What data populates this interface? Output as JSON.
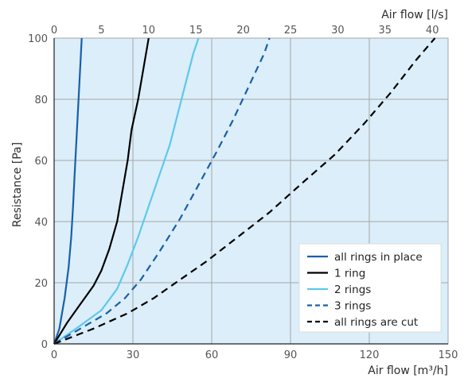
{
  "chart_data": {
    "type": "line",
    "x_bottom": {
      "label": "Air flow [m³/h]",
      "range": [
        0,
        150
      ],
      "ticks": [
        0,
        30,
        60,
        90,
        120,
        150
      ]
    },
    "x_top": {
      "label": "Air flow [l/s]",
      "range": [
        0,
        41.667
      ],
      "ticks": [
        0,
        5,
        10,
        15,
        20,
        25,
        30,
        35,
        40
      ]
    },
    "y": {
      "label": "Resistance [Pa]",
      "range": [
        0,
        100
      ],
      "ticks": [
        0,
        20,
        40,
        60,
        80,
        100
      ]
    },
    "grid": true,
    "legend_position": "bottom-right",
    "series": [
      {
        "name": "all rings in place",
        "color": "#1a5fa8",
        "dash": "solid",
        "points": [
          [
            0,
            0
          ],
          [
            2,
            5
          ],
          [
            4,
            15
          ],
          [
            5.5,
            25
          ],
          [
            6.5,
            35
          ],
          [
            7.2,
            45
          ],
          [
            7.8,
            55
          ],
          [
            8.4,
            65
          ],
          [
            9,
            75
          ],
          [
            9.6,
            85
          ],
          [
            10.2,
            95
          ],
          [
            10.5,
            100
          ]
        ]
      },
      {
        "name": "1 ring",
        "color": "#000000",
        "dash": "solid",
        "points": [
          [
            0,
            0
          ],
          [
            5,
            7
          ],
          [
            10,
            13
          ],
          [
            15,
            19
          ],
          [
            18,
            24
          ],
          [
            21,
            31
          ],
          [
            24,
            40
          ],
          [
            26,
            50
          ],
          [
            28,
            60
          ],
          [
            29.5,
            70
          ],
          [
            32,
            80
          ],
          [
            34,
            90
          ],
          [
            36,
            100
          ]
        ]
      },
      {
        "name": "2 rings",
        "color": "#5ec8ec",
        "dash": "solid",
        "points": [
          [
            0,
            0
          ],
          [
            10,
            6
          ],
          [
            18,
            11
          ],
          [
            24,
            18
          ],
          [
            28,
            26
          ],
          [
            32,
            35
          ],
          [
            36,
            45
          ],
          [
            40,
            55
          ],
          [
            44,
            65
          ],
          [
            47,
            75
          ],
          [
            50,
            85
          ],
          [
            53,
            95
          ],
          [
            55,
            100
          ]
        ]
      },
      {
        "name": "3 rings",
        "color": "#1a5fa8",
        "dash": "dashed",
        "points": [
          [
            0,
            0
          ],
          [
            10,
            5
          ],
          [
            20,
            10
          ],
          [
            27,
            15
          ],
          [
            33,
            21
          ],
          [
            40,
            30
          ],
          [
            48,
            41
          ],
          [
            55,
            52
          ],
          [
            62,
            63
          ],
          [
            68,
            73
          ],
          [
            74,
            84
          ],
          [
            80,
            95
          ],
          [
            82,
            100
          ]
        ]
      },
      {
        "name": "all rings are cut",
        "color": "#000000",
        "dash": "dashed",
        "points": [
          [
            0,
            0
          ],
          [
            15,
            5
          ],
          [
            28,
            10
          ],
          [
            38,
            15
          ],
          [
            48,
            21
          ],
          [
            58,
            27
          ],
          [
            70,
            35
          ],
          [
            82,
            43
          ],
          [
            95,
            53
          ],
          [
            107,
            62
          ],
          [
            118,
            72
          ],
          [
            128,
            82
          ],
          [
            138,
            93
          ],
          [
            145,
            100
          ]
        ]
      }
    ]
  },
  "colors": {
    "plot_background": "#dbeef9",
    "grid": "#a6a6a6",
    "axis_text": "#2d2d2d"
  }
}
